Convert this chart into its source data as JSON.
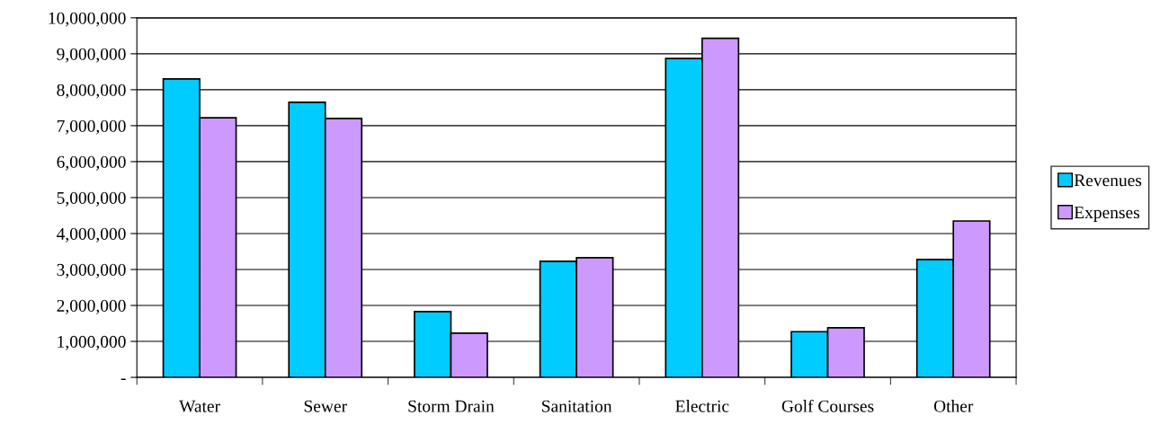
{
  "chart_data": {
    "type": "bar",
    "categories": [
      "Water",
      "Sewer",
      "Storm Drain",
      "Sanitation",
      "Electric",
      "Golf Courses",
      "Other"
    ],
    "series": [
      {
        "name": "Revenues",
        "color": "#00ccff",
        "values": [
          8300000,
          7650000,
          1830000,
          3230000,
          8870000,
          1270000,
          3280000
        ]
      },
      {
        "name": "Expenses",
        "color": "#cc99ff",
        "values": [
          7220000,
          7200000,
          1230000,
          3330000,
          9430000,
          1380000,
          4350000
        ]
      }
    ],
    "ylim": [
      0,
      10000000
    ],
    "yticks": [
      {
        "value": 0,
        "label": "-"
      },
      {
        "value": 1000000,
        "label": "1,000,000"
      },
      {
        "value": 2000000,
        "label": "2,000,000"
      },
      {
        "value": 3000000,
        "label": "3,000,000"
      },
      {
        "value": 4000000,
        "label": "4,000,000"
      },
      {
        "value": 5000000,
        "label": "5,000,000"
      },
      {
        "value": 6000000,
        "label": "6,000,000"
      },
      {
        "value": 7000000,
        "label": "7,000,000"
      },
      {
        "value": 8000000,
        "label": "8,000,000"
      },
      {
        "value": 9000000,
        "label": "9,000,000"
      },
      {
        "value": 10000000,
        "label": "10,000,000"
      }
    ],
    "grid": "y",
    "legend": "right"
  }
}
